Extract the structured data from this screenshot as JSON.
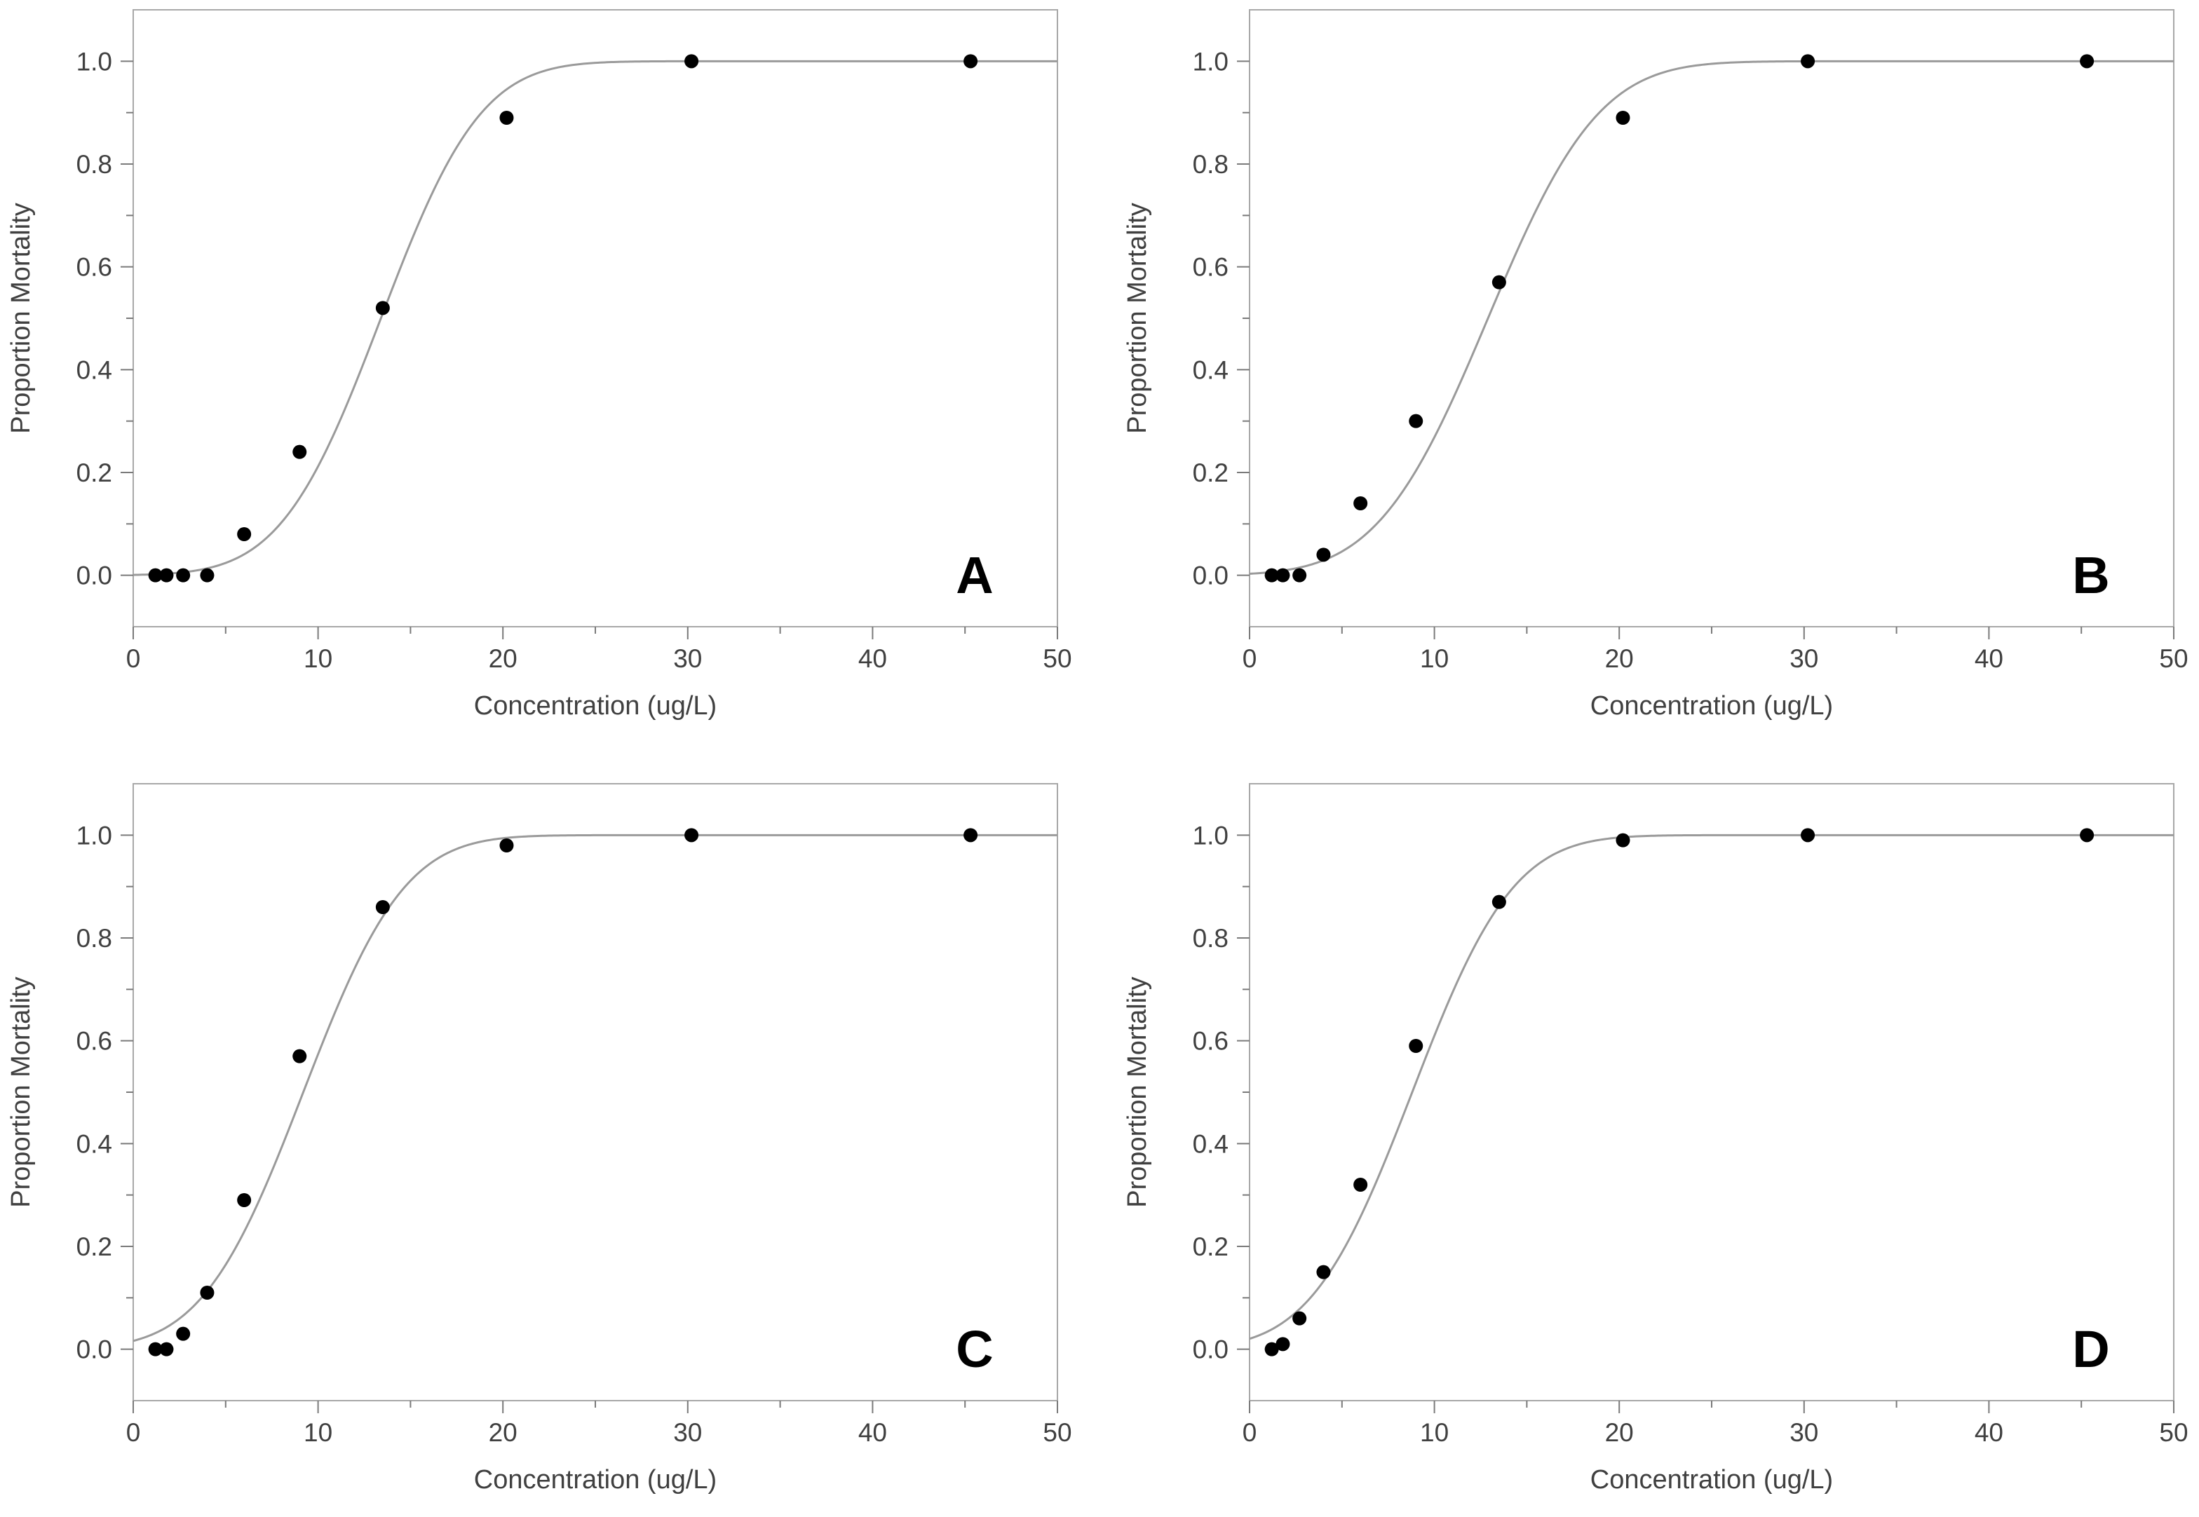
{
  "chart_data": [
    {
      "type": "scatter",
      "panel_label": "A",
      "xlabel": "Concentration (ug/L)",
      "ylabel": "Proportion Mortality",
      "xlim": [
        0,
        50
      ],
      "ylim": [
        -0.1,
        1.1
      ],
      "x_ticks": [
        0,
        10,
        20,
        30,
        40,
        50
      ],
      "y_ticks": [
        0.0,
        0.2,
        0.4,
        0.6,
        0.8,
        1.0
      ],
      "x_tick_labels": [
        "0",
        "10",
        "20",
        "30",
        "40",
        "50"
      ],
      "y_tick_labels": [
        "0.0",
        "0.2",
        "0.4",
        "0.6",
        "0.8",
        "1.0"
      ],
      "legend_position": "none",
      "grid": false,
      "series": [
        {
          "name": "Observed",
          "kind": "points",
          "x": [
            1.2,
            1.8,
            2.7,
            4.0,
            6.0,
            9.0,
            13.5,
            20.2,
            30.2,
            45.3
          ],
          "y": [
            0.0,
            0.0,
            0.0,
            0.0,
            0.08,
            0.24,
            0.52,
            0.89,
            1.0,
            1.0
          ]
        },
        {
          "name": "Fitted curve",
          "kind": "line",
          "model": "normal-cdf",
          "mean": 13.4,
          "sd": 4.25
        }
      ]
    },
    {
      "type": "scatter",
      "panel_label": "B",
      "xlabel": "Concentration (ug/L)",
      "ylabel": "Proportion Mortality",
      "xlim": [
        0,
        50
      ],
      "ylim": [
        -0.1,
        1.1
      ],
      "x_ticks": [
        0,
        10,
        20,
        30,
        40,
        50
      ],
      "y_ticks": [
        0.0,
        0.2,
        0.4,
        0.6,
        0.8,
        1.0
      ],
      "x_tick_labels": [
        "0",
        "10",
        "20",
        "30",
        "40",
        "50"
      ],
      "y_tick_labels": [
        "0.0",
        "0.2",
        "0.4",
        "0.6",
        "0.8",
        "1.0"
      ],
      "legend_position": "none",
      "grid": false,
      "series": [
        {
          "name": "Observed",
          "kind": "points",
          "x": [
            1.2,
            1.8,
            2.7,
            4.0,
            6.0,
            9.0,
            13.5,
            20.2,
            30.2,
            45.3
          ],
          "y": [
            0.0,
            0.0,
            0.0,
            0.04,
            0.14,
            0.3,
            0.57,
            0.89,
            1.0,
            1.0
          ]
        },
        {
          "name": "Fitted curve",
          "kind": "line",
          "model": "normal-cdf",
          "mean": 12.9,
          "sd": 4.7
        }
      ]
    },
    {
      "type": "scatter",
      "panel_label": "C",
      "xlabel": "Concentration (ug/L)",
      "ylabel": "Proportion Mortality",
      "xlim": [
        0,
        50
      ],
      "ylim": [
        -0.1,
        1.1
      ],
      "x_ticks": [
        0,
        10,
        20,
        30,
        40,
        50
      ],
      "y_ticks": [
        0.0,
        0.2,
        0.4,
        0.6,
        0.8,
        1.0
      ],
      "x_tick_labels": [
        "0",
        "10",
        "20",
        "30",
        "40",
        "50"
      ],
      "y_tick_labels": [
        "0.0",
        "0.2",
        "0.4",
        "0.6",
        "0.8",
        "1.0"
      ],
      "legend_position": "none",
      "grid": false,
      "series": [
        {
          "name": "Observed",
          "kind": "points",
          "x": [
            1.2,
            1.8,
            2.7,
            4.0,
            6.0,
            9.0,
            13.5,
            20.2,
            30.2,
            45.3
          ],
          "y": [
            0.0,
            0.0,
            0.03,
            0.11,
            0.29,
            0.57,
            0.86,
            0.98,
            1.0,
            1.0
          ]
        },
        {
          "name": "Fitted curve",
          "kind": "line",
          "model": "normal-cdf",
          "mean": 9.2,
          "sd": 4.3
        }
      ]
    },
    {
      "type": "scatter",
      "panel_label": "D",
      "xlabel": "Concentration (ug/L)",
      "ylabel": "Proportion Mortality",
      "xlim": [
        0,
        50
      ],
      "ylim": [
        -0.1,
        1.1
      ],
      "x_ticks": [
        0,
        10,
        20,
        30,
        40,
        50
      ],
      "y_ticks": [
        0.0,
        0.2,
        0.4,
        0.6,
        0.8,
        1.0
      ],
      "x_tick_labels": [
        "0",
        "10",
        "20",
        "30",
        "40",
        "50"
      ],
      "y_tick_labels": [
        "0.0",
        "0.2",
        "0.4",
        "0.6",
        "0.8",
        "1.0"
      ],
      "legend_position": "none",
      "grid": false,
      "series": [
        {
          "name": "Observed",
          "kind": "points",
          "x": [
            1.2,
            1.8,
            2.7,
            4.0,
            6.0,
            9.0,
            13.5,
            20.2,
            30.2,
            45.3
          ],
          "y": [
            0.0,
            0.01,
            0.06,
            0.15,
            0.32,
            0.59,
            0.87,
            0.99,
            1.0,
            1.0
          ]
        },
        {
          "name": "Fitted curve",
          "kind": "line",
          "model": "normal-cdf",
          "mean": 8.8,
          "sd": 4.3
        }
      ]
    }
  ]
}
